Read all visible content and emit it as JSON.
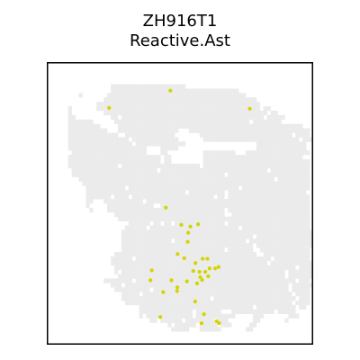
{
  "title": {
    "line1": "ZH916T1",
    "line2": "Reactive.Ast"
  },
  "colors": {
    "tissue": "#ebebeb",
    "highlight": "#d4d400",
    "frame": "#000000",
    "background": "#ffffff"
  },
  "chart_data": {
    "type": "scatter",
    "title": "ZH916T1\nReactive.Ast",
    "xlabel": "",
    "ylabel": "",
    "axes_visible": false,
    "grid": false,
    "xlim": [
      0,
      100
    ],
    "ylim": [
      0,
      100
    ],
    "background_spot_mask": {
      "description": "tissue spots rendered light grey; grid of 75 columns x 64 rows over plot area",
      "cols": 75,
      "rows": 64,
      "rows_data": [
        "...........................................................................",
        "...........................................................................",
        "...........................................................................",
        "...........................................................................",
        "..........................................................................",
        "..................#####################...................................",
        "..................####################################....................",
        ".........#.......#######################################..................",
        "................###########################################................",
        "..............##############################################...............",
        "......#.......##############################################.##............",
        "......#.........##############################################.##..........",
        "......##..........##.########################################.#####.........",
        "......#######......######################################.########.........",
        "......#########.....####################################################....",
        "......###########...#################...##################################..",
        "......##############..##############.......##########################.####..",
        "......#################.#############.......###########################.###.",
        "......##################.##############....................##############..",
        "......######################....#####......................##############.",
        ".......#####################....##..........#########...##################.",
        "......##########################.##.........############################...",
        "......##########################.##.........##############################.",
        "......##############.######################.##############################.",
        ".......########################.##############################.###########.",
        ".......###########################################.#######################.",
        ".........#######################################################.#########.",
        "..........################################################################.",
        "...........###########.###############################.###################.",
        "...........############################.##########.######################.",
        "...........#######.####.#######################.##.#######################.",
        "...........##...###########.##############################################.",
        "...........#.....#############..##########################################.",
        "............#....#################################.#######################.",
        "...................###############################..######################.",
        "....................######################################################.",
        ".......................######.##.##.##############.#######################.",
        "......................######.#########################.###################.",
        ".....................######################################################.",
        ".....................#####################################.#################",
        ".....................##############.####################.##################",
        ".....................#####################################.################.",
        ".....................#############################.#######..##############..",
        "...................########################################..#############..",
        "..................######.######################################.##########..",
        "..................############################################.############.",
        "...................###################################################.####.",
        "...................#.##############################################.#######.",
        "....................###############################################.#######.",
        "................########.#############################################.###.",
        "..................###.##############################################.######.",
        "...................##########.######################################.#####.",
        ".....................#####.##########################################.####.",
        ".....................#########################.#######################.###.",
        "......................###############################################.####.",
        "..........................################################.###########.##.",
        "..........................###############.#######...############.#####....",
        "..........................#.#############.###########.....###.......###...",
        ".............................##.######.########.###.......##.......#.......",
        "..................................#.######.#####.###.....##...............",
        "...................................#####...######.......##.................",
        "...........................................................................",
        "...........................................................................",
        "..........................................................................."
      ]
    },
    "series": [
      {
        "name": "Reactive.Ast",
        "color": "#d4d400",
        "points": [
          [
            23.4,
            83.8
          ],
          [
            46.4,
            89.9
          ],
          [
            76.2,
            83.5
          ],
          [
            44.7,
            48.5
          ],
          [
            50.5,
            42.4
          ],
          [
            53.9,
            41.8
          ],
          [
            56.8,
            42.6
          ],
          [
            53.1,
            39.6
          ],
          [
            52.9,
            36.4
          ],
          [
            49.1,
            32.1
          ],
          [
            51.6,
            30.6
          ],
          [
            55.8,
            28.9
          ],
          [
            58.5,
            30.4
          ],
          [
            60.3,
            30.4
          ],
          [
            61.1,
            27.0
          ],
          [
            55.0,
            26.1
          ],
          [
            57.3,
            25.8
          ],
          [
            59.5,
            25.8
          ],
          [
            60.6,
            24.2
          ],
          [
            64.5,
            27.5
          ],
          [
            63.2,
            27.0
          ],
          [
            39.4,
            26.3
          ],
          [
            38.9,
            22.8
          ],
          [
            46.8,
            22.8
          ],
          [
            49.0,
            20.3
          ],
          [
            52.6,
            22.4
          ],
          [
            56.4,
            21.7
          ],
          [
            57.6,
            23.9
          ],
          [
            58.3,
            22.9
          ],
          [
            43.7,
            18.6
          ],
          [
            48.9,
            19.0
          ],
          [
            55.7,
            15.3
          ],
          [
            59.0,
            10.8
          ],
          [
            42.6,
            9.8
          ],
          [
            58.1,
            7.6
          ],
          [
            63.7,
            8.3
          ],
          [
            64.7,
            7.6
          ]
        ]
      }
    ]
  }
}
